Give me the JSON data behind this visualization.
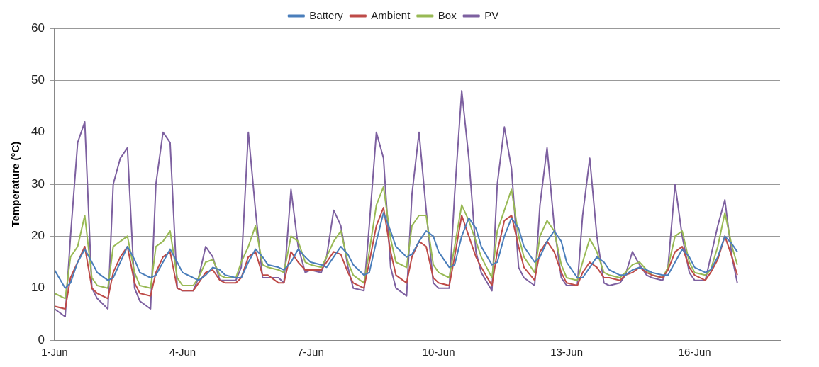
{
  "chart_data": {
    "type": "line",
    "ylabel": "Temperature (°C)",
    "legend": "top",
    "grid": "y",
    "marker": "none",
    "line_style": "solid",
    "x": [
      "--06-01T00:00",
      "--06-01T06:00",
      "--06-01T09:00",
      "--06-01T13:00",
      "--06-01T17:00",
      "--06-01T21:00",
      "--06-02T00:00",
      "--06-02T06:00",
      "--06-02T09:00",
      "--06-02T13:00",
      "--06-02T17:00",
      "--06-02T21:00",
      "--06-03T00:00",
      "--06-03T06:00",
      "--06-03T09:00",
      "--06-03T13:00",
      "--06-03T17:00",
      "--06-03T21:00",
      "--06-04T00:00",
      "--06-04T06:00",
      "--06-04T09:00",
      "--06-04T13:00",
      "--06-04T17:00",
      "--06-04T21:00",
      "--06-05T00:00",
      "--06-05T06:00",
      "--06-05T09:00",
      "--06-05T13:00",
      "--06-05T17:00",
      "--06-05T21:00",
      "--06-06T00:00",
      "--06-06T06:00",
      "--06-06T09:00",
      "--06-06T13:00",
      "--06-06T17:00",
      "--06-06T21:00",
      "--06-07T00:00",
      "--06-07T06:00",
      "--06-07T09:00",
      "--06-07T13:00",
      "--06-07T17:00",
      "--06-07T21:00",
      "--06-08T00:00",
      "--06-08T06:00",
      "--06-08T09:00",
      "--06-08T13:00",
      "--06-08T17:00",
      "--06-08T21:00",
      "--06-09T00:00",
      "--06-09T06:00",
      "--06-09T09:00",
      "--06-09T13:00",
      "--06-09T17:00",
      "--06-09T21:00",
      "--06-10T00:00",
      "--06-10T06:00",
      "--06-10T09:00",
      "--06-10T13:00",
      "--06-10T17:00",
      "--06-10T21:00",
      "--06-11T00:00",
      "--06-11T06:00",
      "--06-11T09:00",
      "--06-11T13:00",
      "--06-11T17:00",
      "--06-11T21:00",
      "--06-12T00:00",
      "--06-12T06:00",
      "--06-12T09:00",
      "--06-12T13:00",
      "--06-12T17:00",
      "--06-12T21:00",
      "--06-13T00:00",
      "--06-13T06:00",
      "--06-13T09:00",
      "--06-13T13:00",
      "--06-13T17:00",
      "--06-13T21:00",
      "--06-14T00:00",
      "--06-14T06:00",
      "--06-14T09:00",
      "--06-14T13:00",
      "--06-14T17:00",
      "--06-14T21:00",
      "--06-15T00:00",
      "--06-15T06:00",
      "--06-15T09:00",
      "--06-15T13:00",
      "--06-15T17:00",
      "--06-15T21:00",
      "--06-16T00:00",
      "--06-16T06:00",
      "--06-16T09:00",
      "--06-16T13:00",
      "--06-16T17:00",
      "--06-16T21:00",
      "--06-17T00:00"
    ],
    "series": [
      {
        "name": "Battery",
        "color": "#4a7ebb",
        "values": [
          13.5,
          10,
          11,
          15,
          17.5,
          15,
          13,
          11.5,
          12,
          15,
          18,
          15.5,
          13,
          12,
          12.5,
          15,
          17.5,
          15,
          13,
          12,
          11.5,
          12.5,
          14,
          13.5,
          12.5,
          12,
          12,
          15,
          17.5,
          16,
          14.5,
          14,
          13.5,
          15,
          17.5,
          16,
          15,
          14.5,
          14,
          16,
          18,
          16.5,
          14.5,
          12.5,
          13,
          19,
          24.5,
          21,
          18,
          16,
          16.5,
          19,
          21,
          20,
          17,
          14,
          14.5,
          20,
          23.5,
          21.5,
          18,
          14.5,
          15,
          20,
          23.5,
          21.5,
          18,
          15,
          16,
          19,
          21,
          19,
          15,
          12,
          12,
          14,
          16,
          15,
          13.5,
          12.5,
          12.5,
          13.5,
          14,
          13.5,
          13,
          12.5,
          12.5,
          15,
          17.5,
          16,
          14,
          13,
          13.5,
          16,
          20,
          18.5,
          17
        ]
      },
      {
        "name": "Ambient",
        "color": "#be4b48",
        "values": [
          6.5,
          6,
          12,
          15,
          18,
          10,
          9,
          8,
          13,
          16,
          18,
          11,
          9,
          8.5,
          13,
          16,
          17,
          10,
          9.5,
          9.5,
          11,
          13,
          13.5,
          11.5,
          11,
          11,
          12,
          16,
          17,
          12.5,
          12.5,
          11,
          11,
          17,
          15,
          13.5,
          13.5,
          13.5,
          15,
          17,
          16.5,
          13,
          11,
          10,
          15,
          22,
          25.5,
          17,
          12.5,
          11,
          16,
          19,
          18,
          12,
          11,
          10.5,
          16,
          24,
          20,
          16,
          14,
          10.5,
          17,
          23,
          24,
          18,
          14,
          11.5,
          17,
          19,
          17,
          13,
          11,
          10.5,
          13,
          15,
          14,
          12,
          12,
          11.5,
          12.5,
          13,
          14,
          13,
          12.5,
          12,
          13.5,
          17,
          18,
          14,
          12.5,
          11.5,
          13,
          15.5,
          20,
          16,
          12.5
        ]
      },
      {
        "name": "Box",
        "color": "#98b954",
        "values": [
          9,
          8,
          16,
          18,
          24,
          12,
          10.5,
          10,
          18,
          19,
          20,
          13,
          10.5,
          10,
          18,
          19,
          21,
          12,
          10.5,
          10.5,
          12,
          15,
          15.5,
          12.5,
          12,
          12,
          15,
          18,
          22,
          14.5,
          14,
          13.5,
          13,
          20,
          19,
          15,
          14.5,
          14,
          16,
          19,
          21,
          15,
          12.5,
          11,
          17,
          26,
          29.5,
          19.5,
          15,
          14,
          22,
          24,
          24,
          14.5,
          13,
          12,
          18,
          26,
          23,
          19,
          16,
          12,
          21,
          25,
          29,
          20,
          16,
          13,
          20,
          23,
          21,
          14.5,
          12,
          11.5,
          15,
          19.5,
          17,
          13,
          12.5,
          12,
          13,
          14.5,
          15,
          13.5,
          12.5,
          12,
          14,
          20,
          21,
          15,
          13,
          12.5,
          13.5,
          18,
          24.5,
          18,
          14.5
        ]
      },
      {
        "name": "PV",
        "color": "#7d60a0",
        "values": [
          6,
          4.5,
          20,
          38,
          42,
          10,
          8,
          6,
          30,
          35,
          37,
          10,
          7.5,
          6,
          30,
          40,
          38,
          10,
          9.5,
          9.5,
          12,
          18,
          16,
          11.5,
          11.5,
          11.5,
          14,
          40,
          25,
          12,
          12,
          12,
          11,
          29,
          18,
          13,
          13.5,
          13,
          16,
          25,
          22,
          14,
          10,
          9.5,
          22,
          40,
          35,
          14,
          10,
          8.5,
          28,
          40,
          25,
          11,
          10,
          10,
          28,
          48,
          35,
          17,
          13,
          9.5,
          30,
          41,
          33,
          14,
          12,
          10.5,
          26,
          37,
          22,
          12,
          10.5,
          10.5,
          24,
          35,
          20,
          11,
          10.5,
          11,
          12.5,
          17,
          14.5,
          12.5,
          12,
          11.5,
          14,
          30,
          20,
          13,
          11.5,
          11.5,
          16,
          22,
          27,
          16,
          11
        ]
      }
    ],
    "xlim": [
      "--06-01",
      "--06-18"
    ],
    "xticks": [
      {
        "value": "--06-01",
        "label": "1-Jun"
      },
      {
        "value": "--06-04",
        "label": "4-Jun"
      },
      {
        "value": "--06-07",
        "label": "7-Jun"
      },
      {
        "value": "--06-10",
        "label": "10-Jun"
      },
      {
        "value": "--06-13",
        "label": "13-Jun"
      },
      {
        "value": "--06-16",
        "label": "16-Jun"
      }
    ],
    "ylim": [
      0,
      60
    ],
    "yticks": [
      0,
      10,
      20,
      30,
      40,
      50,
      60
    ]
  }
}
